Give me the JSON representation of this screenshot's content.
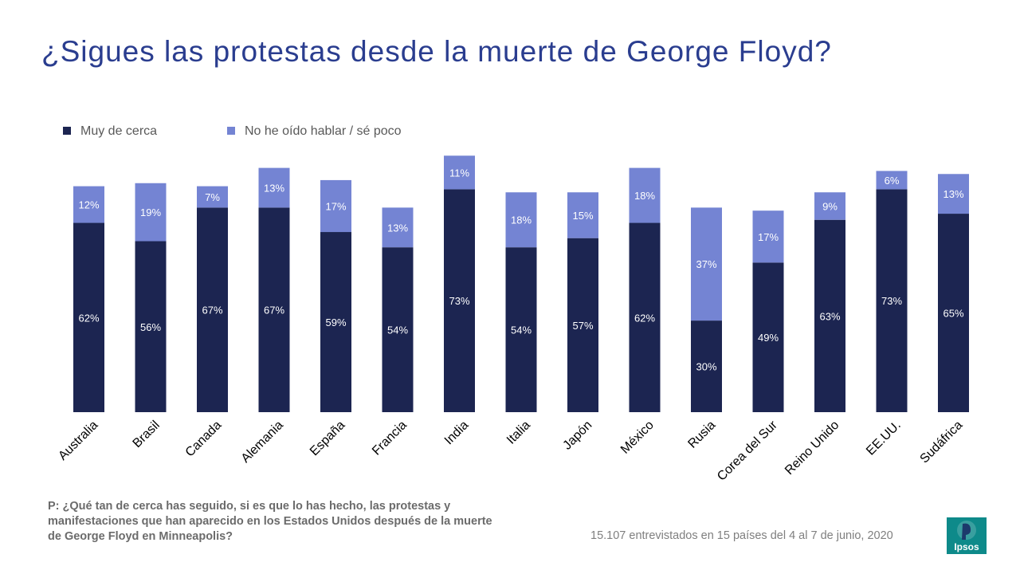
{
  "title": "¿Sigues las protestas desde la muerte de George Floyd?",
  "colors": {
    "dark": "#1c2551",
    "light": "#7484d3",
    "title": "#2a3d8f",
    "logo": "#0e8a8a"
  },
  "question": "P: ¿Qué tan de cerca has seguido, si es que lo has hecho, las protestas y manifestaciones que han aparecido en los Estados Unidos después de la muerte de George Floyd en Minneapolis?",
  "footnote": "15.107 entrevistados en 15 países del 4 al 7 de junio, 2020",
  "logo_text": "Ipsos",
  "chart_data": {
    "type": "bar",
    "stacked": true,
    "categories": [
      "Australia",
      "Brasil",
      "Canada",
      "Alemania",
      "España",
      "Francia",
      "India",
      "Italia",
      "Japón",
      "México",
      "Rusia",
      "Corea del Sur",
      "Reino Unido",
      "EE.UU.",
      "Sudáfrica"
    ],
    "series": [
      {
        "name": "Muy de cerca",
        "values": [
          62,
          56,
          67,
          67,
          59,
          54,
          73,
          54,
          57,
          62,
          30,
          49,
          63,
          73,
          65
        ],
        "labels": [
          "62%",
          "56%",
          "67%",
          "67%",
          "59%",
          "54%",
          "73%",
          "54%",
          "57%",
          "62%",
          "30%",
          "49%",
          "63%",
          "73%",
          "65%"
        ]
      },
      {
        "name": "No he oído hablar / sé poco",
        "values": [
          12,
          19,
          7,
          13,
          17,
          13,
          11,
          18,
          15,
          18,
          37,
          17,
          9,
          6,
          13
        ],
        "labels": [
          "12%",
          "19%",
          "7%",
          "13%",
          "17%",
          "13%",
          "11%",
          "18%",
          "15%",
          "18%",
          "37%",
          "17%",
          "9%",
          "6%",
          "13%"
        ]
      }
    ],
    "legend_position": "top-left",
    "grid": false
  }
}
